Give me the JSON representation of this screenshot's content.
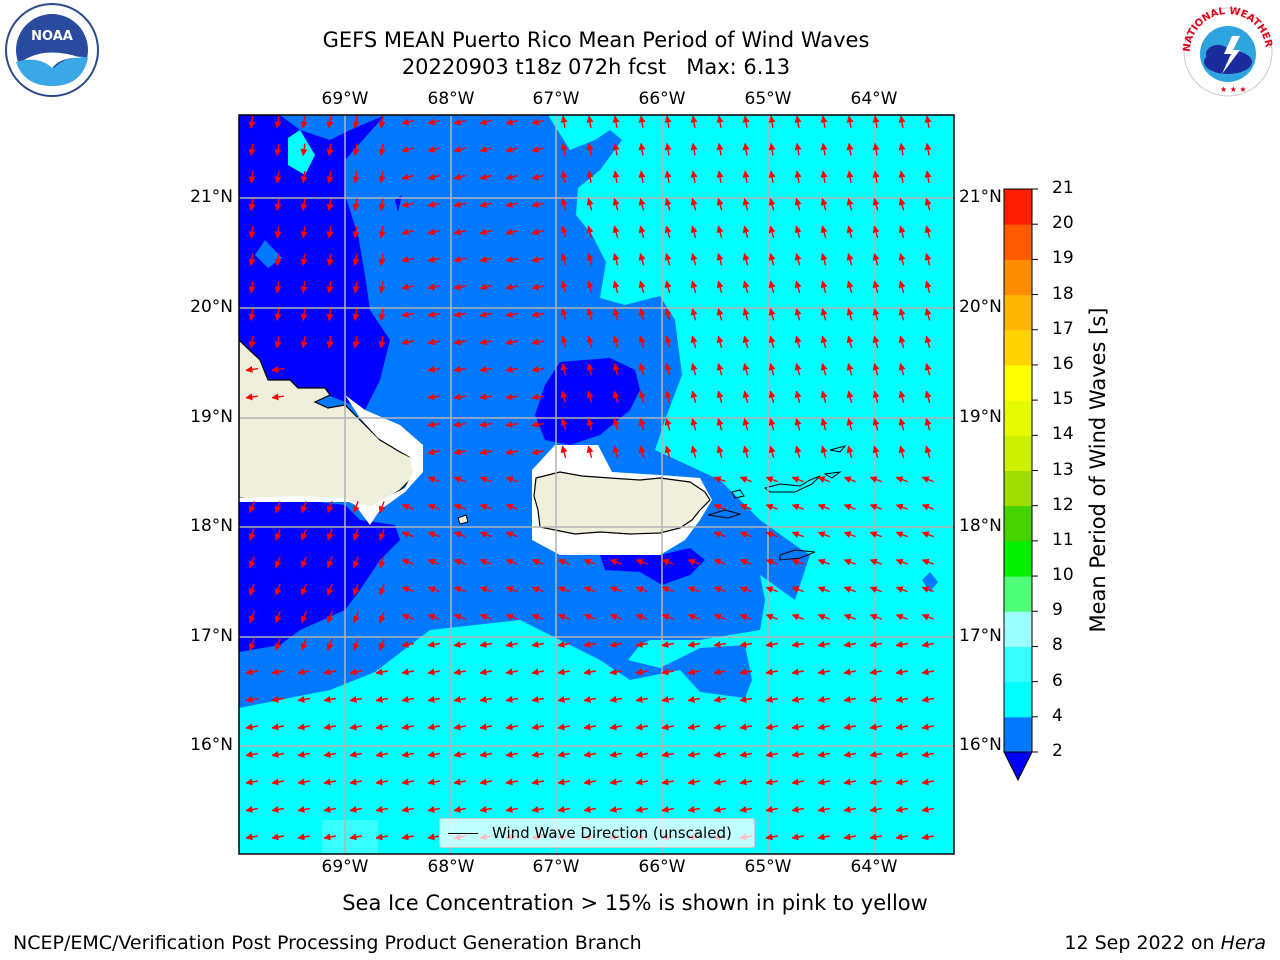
{
  "title": {
    "line1": "GEFS MEAN Puerto Rico Mean Period of Wind Waves",
    "line2": "20220903 t18z 072h fcst   Max: 6.13"
  },
  "map": {
    "lon_ticks": [
      "69°W",
      "68°W",
      "67°W",
      "66°W",
      "65°W",
      "64°W"
    ],
    "lat_ticks": [
      "21°N",
      "20°N",
      "19°N",
      "18°N",
      "17°N",
      "16°N"
    ],
    "lon_range": [
      -70.0,
      -63.25
    ],
    "lat_range": [
      15.0,
      21.75
    ],
    "legend_label": "Wind Wave Direction (unscaled)",
    "arrow_color": "#ff0000",
    "land_color": "#efefdc"
  },
  "colorbar": {
    "label": "Mean Period of Wind Waves [s]",
    "tick_labels": [
      "2",
      "4",
      "6",
      "8",
      "9",
      "10",
      "11",
      "12",
      "13",
      "14",
      "15",
      "16",
      "17",
      "18",
      "19",
      "20",
      "21"
    ],
    "colors": [
      "#0078ff",
      "#00ffff",
      "#38ffff",
      "#9cffff",
      "#50ff78",
      "#00f000",
      "#46d200",
      "#a0dc00",
      "#ccf000",
      "#e6fa00",
      "#ffff00",
      "#ffd200",
      "#ffb400",
      "#ff8c00",
      "#ff5a00",
      "#ff1e00",
      "#ff0000"
    ],
    "under_color": "#0000ff"
  },
  "notes": {
    "sea_ice": "Sea Ice Concentration > 15% is shown in pink to yellow"
  },
  "footer": {
    "left": "NCEP/EMC/Verification Post Processing Product Generation Branch",
    "date": "12 Sep 2022 on ",
    "machine": "Hera"
  },
  "logos": {
    "noaa": "NOAA",
    "nws_text": "NATIONAL WEATHER SERVICE"
  }
}
